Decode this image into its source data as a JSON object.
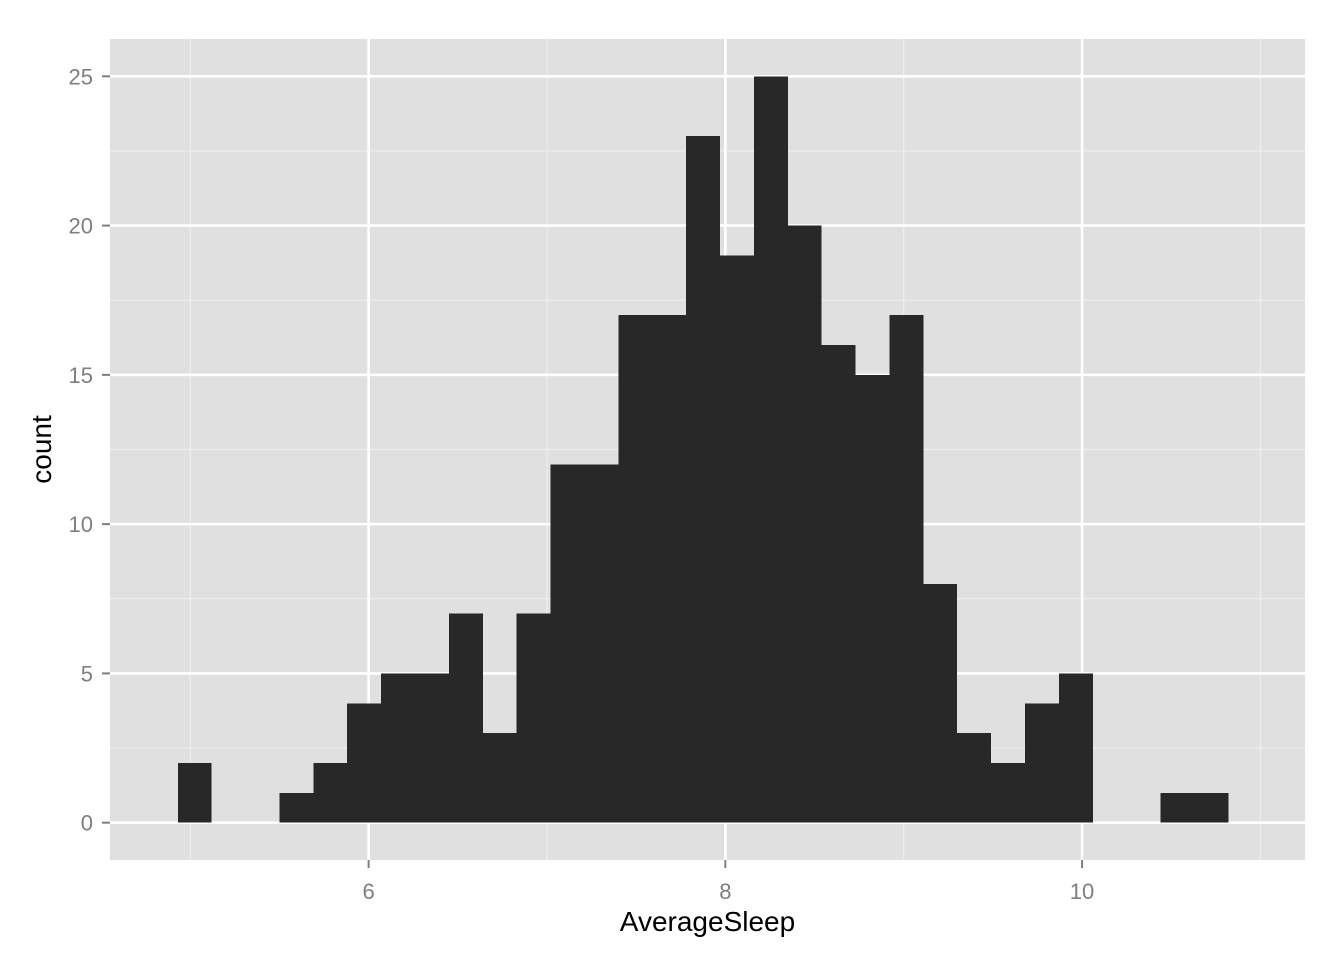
{
  "chart_data": {
    "type": "bar",
    "subtype": "histogram",
    "xlabel": "AverageSleep",
    "ylabel": "count",
    "xlim": [
      4.55,
      11.25
    ],
    "ylim": [
      -1.25,
      26.25
    ],
    "x_ticks": [
      6,
      8,
      10
    ],
    "y_ticks": [
      0,
      5,
      10,
      15,
      20,
      25
    ],
    "x_tick_labels": [
      "6",
      "8",
      "10"
    ],
    "y_tick_labels": [
      "0",
      "5",
      "10",
      "15",
      "20",
      "25"
    ],
    "x_minor_ticks": [
      5,
      7,
      9,
      11
    ],
    "y_minor_ticks": [
      2.5,
      7.5,
      12.5,
      17.5,
      22.5
    ],
    "grid": true,
    "legend": "none",
    "bin_width": 0.19,
    "bins": [
      {
        "x_start": 4.93,
        "x_end": 5.12,
        "count": 2
      },
      {
        "x_start": 5.12,
        "x_end": 5.31,
        "count": 0
      },
      {
        "x_start": 5.31,
        "x_end": 5.5,
        "count": 0
      },
      {
        "x_start": 5.5,
        "x_end": 5.69,
        "count": 1
      },
      {
        "x_start": 5.69,
        "x_end": 5.88,
        "count": 2
      },
      {
        "x_start": 5.88,
        "x_end": 6.07,
        "count": 4
      },
      {
        "x_start": 6.07,
        "x_end": 6.26,
        "count": 5
      },
      {
        "x_start": 6.26,
        "x_end": 6.45,
        "count": 5
      },
      {
        "x_start": 6.45,
        "x_end": 6.64,
        "count": 7
      },
      {
        "x_start": 6.64,
        "x_end": 6.83,
        "count": 3
      },
      {
        "x_start": 6.83,
        "x_end": 7.02,
        "count": 7
      },
      {
        "x_start": 7.02,
        "x_end": 7.21,
        "count": 12
      },
      {
        "x_start": 7.21,
        "x_end": 7.4,
        "count": 12
      },
      {
        "x_start": 7.4,
        "x_end": 7.59,
        "count": 17
      },
      {
        "x_start": 7.59,
        "x_end": 7.78,
        "count": 17
      },
      {
        "x_start": 7.78,
        "x_end": 7.97,
        "count": 23
      },
      {
        "x_start": 7.97,
        "x_end": 8.16,
        "count": 19
      },
      {
        "x_start": 8.16,
        "x_end": 8.35,
        "count": 25
      },
      {
        "x_start": 8.35,
        "x_end": 8.54,
        "count": 20
      },
      {
        "x_start": 8.54,
        "x_end": 8.73,
        "count": 16
      },
      {
        "x_start": 8.73,
        "x_end": 8.92,
        "count": 15
      },
      {
        "x_start": 8.92,
        "x_end": 9.11,
        "count": 17
      },
      {
        "x_start": 9.11,
        "x_end": 9.3,
        "count": 8
      },
      {
        "x_start": 9.3,
        "x_end": 9.49,
        "count": 3
      },
      {
        "x_start": 9.49,
        "x_end": 9.68,
        "count": 2
      },
      {
        "x_start": 9.68,
        "x_end": 9.87,
        "count": 4
      },
      {
        "x_start": 9.87,
        "x_end": 10.06,
        "count": 5
      },
      {
        "x_start": 10.06,
        "x_end": 10.25,
        "count": 0
      },
      {
        "x_start": 10.25,
        "x_end": 10.44,
        "count": 0
      },
      {
        "x_start": 10.44,
        "x_end": 10.63,
        "count": 1
      },
      {
        "x_start": 10.63,
        "x_end": 10.82,
        "count": 1
      }
    ],
    "colors": {
      "panel_background": "#e0e0e0",
      "grid_major": "#ffffff",
      "grid_minor": "#eeeeee",
      "bar_fill": "#282828",
      "tick_label": "#7f7f7f",
      "tick_mark": "#7f7f7f",
      "axis_title": "#000000"
    }
  }
}
